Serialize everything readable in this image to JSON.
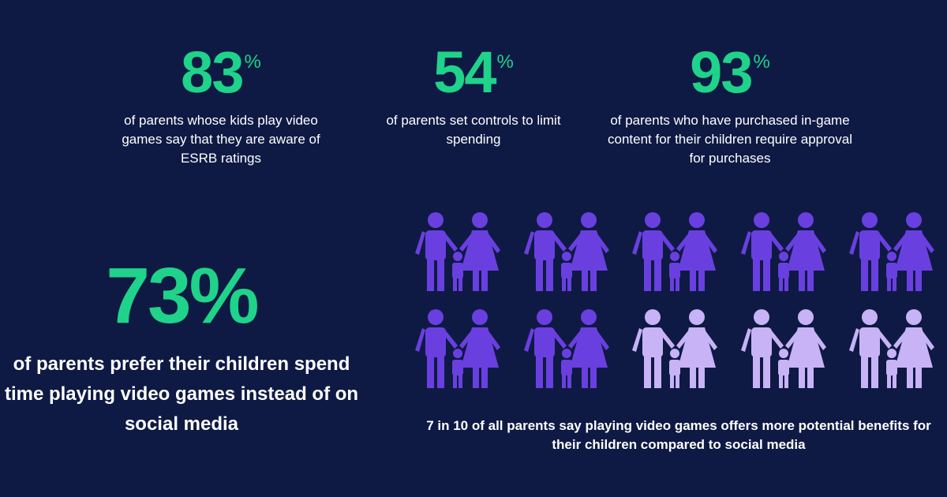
{
  "stats": [
    {
      "value": "83",
      "unit": "%",
      "text": "of parents whose kids play video games say that they are aware of ESRB ratings"
    },
    {
      "value": "54",
      "unit": "%",
      "text": "of parents set controls to limit spending"
    },
    {
      "value": "93",
      "unit": "%",
      "text": "of parents who have purchased in-game content for their children require approval for purchases"
    }
  ],
  "big_stat": {
    "value": "73%",
    "text": "of parents prefer their children spend time playing video games instead of on social media"
  },
  "pictogram": {
    "highlighted": 7,
    "total": 10,
    "caption": "7 in 10 of all parents say playing video games offers more potential benefits for their children compared to social media",
    "icon": "family-icon",
    "colors": {
      "highlighted": "#6a3fe0",
      "other": "#c7b3f5"
    }
  },
  "colors": {
    "background": "#0e1a44",
    "accent": "#1fd38a"
  }
}
